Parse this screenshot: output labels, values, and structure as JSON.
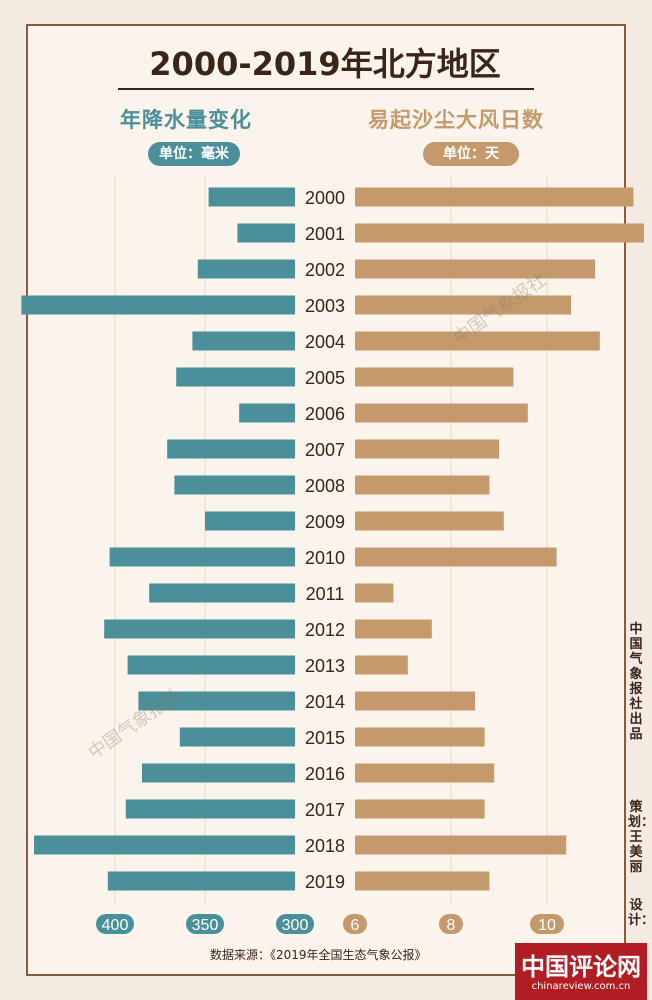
{
  "title": "2000-2019年北方地区",
  "left_header": "年降水量变化",
  "left_unit": "单位：毫米",
  "right_header": "易起沙尘大风日数",
  "right_unit": "单位：天",
  "side_text_1": "中国气象报社出品",
  "side_text_2": "策划：王美丽",
  "side_text_3": "设计：",
  "source": "数据来源：《2019年全国生态气象公报》",
  "brand_name": "中国评论网",
  "brand_url": "chinareview.com.cn",
  "watermark": "中国气象报社",
  "colors": {
    "precip": "#4a8f99",
    "wind": "#c49a6c",
    "text": "#3b2418",
    "frame": "#8a5a3c"
  },
  "chart_data": {
    "type": "bar",
    "categories": [
      "2000",
      "2001",
      "2002",
      "2003",
      "2004",
      "2005",
      "2006",
      "2007",
      "2008",
      "2009",
      "2010",
      "2011",
      "2012",
      "2013",
      "2014",
      "2015",
      "2016",
      "2017",
      "2018",
      "2019"
    ],
    "series": [
      {
        "name": "年降水量变化",
        "unit": "毫米",
        "values": [
          348,
          332,
          354,
          452,
          357,
          366,
          331,
          371,
          367,
          350,
          403,
          381,
          406,
          393,
          387,
          364,
          385,
          394,
          445,
          404
        ]
      },
      {
        "name": "易起沙尘大风日数",
        "unit": "天",
        "values": [
          11.8,
          12.1,
          11.0,
          10.5,
          11.1,
          9.3,
          9.6,
          9.0,
          8.8,
          9.1,
          10.2,
          6.8,
          7.6,
          7.1,
          8.5,
          8.7,
          8.9,
          8.7,
          10.4,
          8.8
        ]
      }
    ],
    "left_axis": {
      "ticks": [
        400,
        350,
        300
      ],
      "range": [
        300,
        460
      ],
      "direction": "leftward"
    },
    "right_axis": {
      "ticks": [
        6,
        8,
        10
      ],
      "range": [
        6,
        12.1
      ]
    },
    "grid": true
  }
}
